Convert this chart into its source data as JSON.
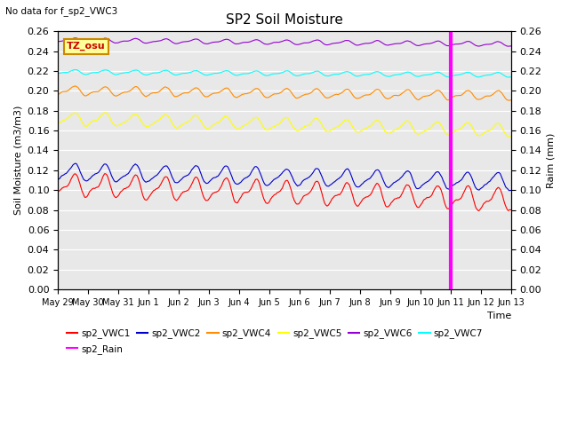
{
  "title": "SP2 Soil Moisture",
  "top_left_note": "No data for f_sp2_VWC3",
  "ylabel_left": "Soil Moisture (m3/m3)",
  "ylabel_right": "Raim (mm)",
  "xlabel": "Time",
  "ylim": [
    0.0,
    0.26
  ],
  "background_color": "#e8e8e8",
  "tz_label": "TZ_osu",
  "series": {
    "sp2_VWC1": {
      "color": "#ff0000",
      "base": 0.105,
      "amp": 0.01,
      "amp2": 0.005,
      "trend": -0.015
    },
    "sp2_VWC2": {
      "color": "#0000cd",
      "base": 0.118,
      "amp": 0.008,
      "amp2": 0.003,
      "trend": -0.01
    },
    "sp2_VWC4": {
      "color": "#ff8c00",
      "base": 0.2,
      "amp": 0.004,
      "amp2": 0.002,
      "trend": -0.005
    },
    "sp2_VWC5": {
      "color": "#ffff00",
      "base": 0.172,
      "amp": 0.006,
      "amp2": 0.002,
      "trend": -0.012
    },
    "sp2_VWC6": {
      "color": "#9400d3",
      "base": 0.251,
      "amp": 0.002,
      "amp2": 0.001,
      "trend": -0.004
    },
    "sp2_VWC7": {
      "color": "#00ffff",
      "base": 0.219,
      "amp": 0.002,
      "amp2": 0.001,
      "trend": -0.003
    }
  },
  "rain_color": "#ff00ff",
  "vline_day": 13.0,
  "tick_dates": [
    "May 29",
    "May 30",
    "May 31",
    "Jun 1",
    "Jun 2",
    "Jun 3",
    "Jun 4",
    "Jun 5",
    "Jun 6",
    "Jun 7",
    "Jun 8",
    "Jun 9",
    "Jun 10",
    "Jun 11",
    "Jun 12",
    "Jun 13"
  ],
  "yticks": [
    0.0,
    0.02,
    0.04,
    0.06,
    0.08,
    0.1,
    0.12,
    0.14,
    0.16,
    0.18,
    0.2,
    0.22,
    0.24,
    0.26
  ]
}
